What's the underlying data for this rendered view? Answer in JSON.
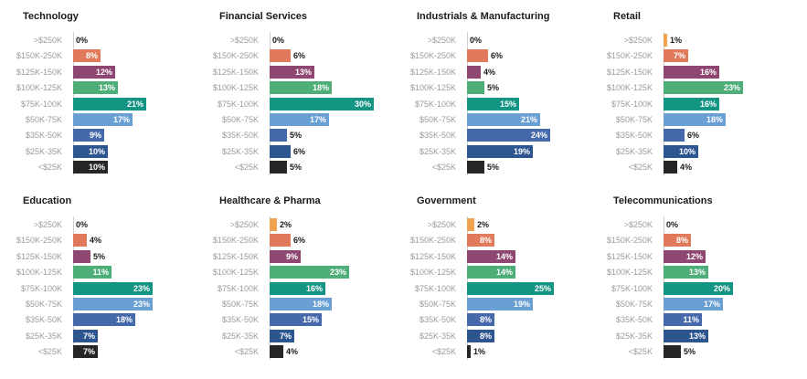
{
  "categories": [
    ">$250K",
    "$150K-250K",
    "$125K-150K",
    "$100K-125K",
    "$75K-100K",
    "$50K-75K",
    "$35K-50K",
    "$25K-35K",
    "<$25K"
  ],
  "colors": [
    "#f2a24e",
    "#e07a5a",
    "#8f4670",
    "#4eae77",
    "#149483",
    "#6a9fd4",
    "#4669ab",
    "#2d5590",
    "#262626"
  ],
  "chart_data": [
    {
      "type": "bar",
      "title": "Technology",
      "categories": [
        ">$250K",
        "$150K-250K",
        "$125K-150K",
        "$100K-125K",
        "$75K-100K",
        "$50K-75K",
        "$35K-50K",
        "$25K-35K",
        "<$25K"
      ],
      "values": [
        0,
        8,
        12,
        13,
        21,
        17,
        9,
        10,
        10
      ],
      "labels": [
        "0%",
        "8%",
        "12%",
        "13%",
        "21%",
        "17%",
        "9%",
        "10%",
        "10%"
      ]
    },
    {
      "type": "bar",
      "title": "Financial Services",
      "categories": [
        ">$250K",
        "$150K-250K",
        "$125K-150K",
        "$100K-125K",
        "$75K-100K",
        "$50K-75K",
        "$35K-50K",
        "$25K-35K",
        "<$25K"
      ],
      "values": [
        0,
        6,
        13,
        18,
        30,
        17,
        5,
        6,
        5
      ],
      "labels": [
        "0%",
        "6%",
        "13%",
        "18%",
        "30%",
        "17%",
        "5%",
        "6%",
        "5%"
      ]
    },
    {
      "type": "bar",
      "title": "Industrials & Manufacturing",
      "categories": [
        ">$250K",
        "$150K-250K",
        "$125K-150K",
        "$100K-125K",
        "$75K-100K",
        "$50K-75K",
        "$35K-50K",
        "$25K-35K",
        "<$25K"
      ],
      "values": [
        0,
        6,
        4,
        5,
        15,
        21,
        24,
        19,
        5
      ],
      "labels": [
        "0%",
        "6%",
        "4%",
        "5%",
        "15%",
        "21%",
        "24%",
        "19%",
        "5%"
      ]
    },
    {
      "type": "bar",
      "title": "Retail",
      "categories": [
        ">$250K",
        "$150K-250K",
        "$125K-150K",
        "$100K-125K",
        "$75K-100K",
        "$50K-75K",
        "$35K-50K",
        "$25K-35K",
        "<$25K"
      ],
      "values": [
        1,
        7,
        16,
        23,
        16,
        18,
        6,
        10,
        4
      ],
      "labels": [
        "1%",
        "7%",
        "16%",
        "23%",
        "16%",
        "18%",
        "6%",
        "10%",
        "4%"
      ]
    },
    {
      "type": "bar",
      "title": "Education",
      "categories": [
        ">$250K",
        "$150K-250K",
        "$125K-150K",
        "$100K-125K",
        "$75K-100K",
        "$50K-75K",
        "$35K-50K",
        "$25K-35K",
        "<$25K"
      ],
      "values": [
        0,
        4,
        5,
        11,
        23,
        23,
        18,
        7,
        7
      ],
      "labels": [
        "0%",
        "4%",
        "5%",
        "11%",
        "23%",
        "23%",
        "18%",
        "7%",
        "7%"
      ]
    },
    {
      "type": "bar",
      "title": "Healthcare & Pharma",
      "categories": [
        ">$250K",
        "$150K-250K",
        "$125K-150K",
        "$100K-125K",
        "$75K-100K",
        "$50K-75K",
        "$35K-50K",
        "$25K-35K",
        "<$25K"
      ],
      "values": [
        2,
        6,
        9,
        23,
        16,
        18,
        15,
        7,
        4
      ],
      "labels": [
        "2%",
        "6%",
        "9%",
        "23%",
        "16%",
        "18%",
        "15%",
        "7%",
        "4%"
      ]
    },
    {
      "type": "bar",
      "title": "Government",
      "categories": [
        ">$250K",
        "$150K-250K",
        "$125K-150K",
        "$100K-125K",
        "$75K-100K",
        "$50K-75K",
        "$35K-50K",
        "$25K-35K",
        "<$25K"
      ],
      "values": [
        2,
        8,
        14,
        14,
        25,
        19,
        8,
        8,
        1
      ],
      "labels": [
        "2%",
        "8%",
        "14%",
        "14%",
        "25%",
        "19%",
        "8%",
        "8%",
        "1%"
      ]
    },
    {
      "type": "bar",
      "title": "Telecommunications",
      "categories": [
        ">$250K",
        "$150K-250K",
        "$125K-150K",
        "$100K-125K",
        "$75K-100K",
        "$50K-75K",
        "$35K-50K",
        "$25K-35K",
        "<$25K"
      ],
      "values": [
        0,
        8,
        12,
        13,
        20,
        17,
        11,
        13,
        5
      ],
      "labels": [
        "0%",
        "8%",
        "12%",
        "13%",
        "20%",
        "17%",
        "11%",
        "13%",
        "5%"
      ]
    }
  ]
}
